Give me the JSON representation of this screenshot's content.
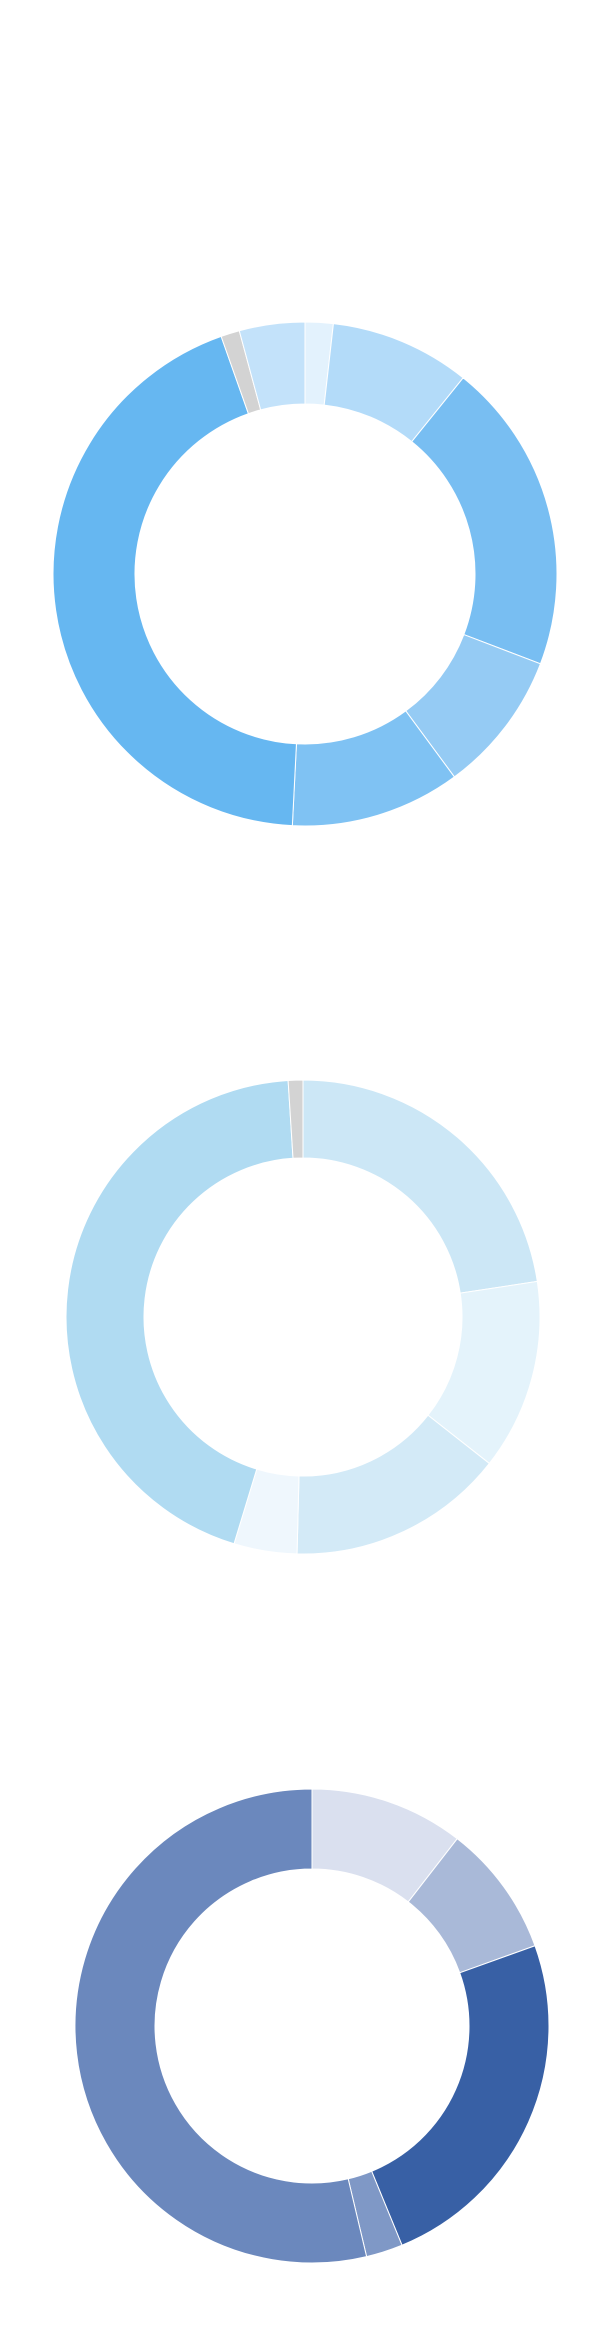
{
  "chart_data": [
    {
      "type": "pie",
      "donut": true,
      "start_angle_deg": 0,
      "slices": [
        {
          "value": 1.8,
          "color": "#e3f2fd"
        },
        {
          "value": 9.0,
          "color": "#b3dbf9"
        },
        {
          "value": 20.0,
          "color": "#78bef2"
        },
        {
          "value": 9.1,
          "color": "#95cbf4"
        },
        {
          "value": 10.9,
          "color": "#7fc2f3"
        },
        {
          "value": 43.8,
          "color": "#66b7f1"
        },
        {
          "value": 1.2,
          "color": "#d3d3d3"
        },
        {
          "value": 4.2,
          "color": "#c3e2fa"
        }
      ]
    },
    {
      "type": "pie",
      "donut": true,
      "start_angle_deg": 0,
      "slices": [
        {
          "value": 22.6,
          "color": "#cce7f6"
        },
        {
          "value": 13.0,
          "color": "#e4f3fb"
        },
        {
          "value": 14.8,
          "color": "#d3eaf7"
        },
        {
          "value": 4.3,
          "color": "#eff7fd"
        },
        {
          "value": 44.3,
          "color": "#b0dbf2"
        },
        {
          "value": 1.0,
          "color": "#d3d3d3"
        }
      ]
    },
    {
      "type": "pie",
      "donut": true,
      "start_angle_deg": 0,
      "slices": [
        {
          "value": 10.5,
          "color": "#dae0ef"
        },
        {
          "value": 9.0,
          "color": "#a9b9d8"
        },
        {
          "value": 24.3,
          "color": "#3860a5"
        },
        {
          "value": 2.5,
          "color": "#7f98c6"
        },
        {
          "value": 53.7,
          "color": "#6b88bd"
        }
      ]
    }
  ]
}
